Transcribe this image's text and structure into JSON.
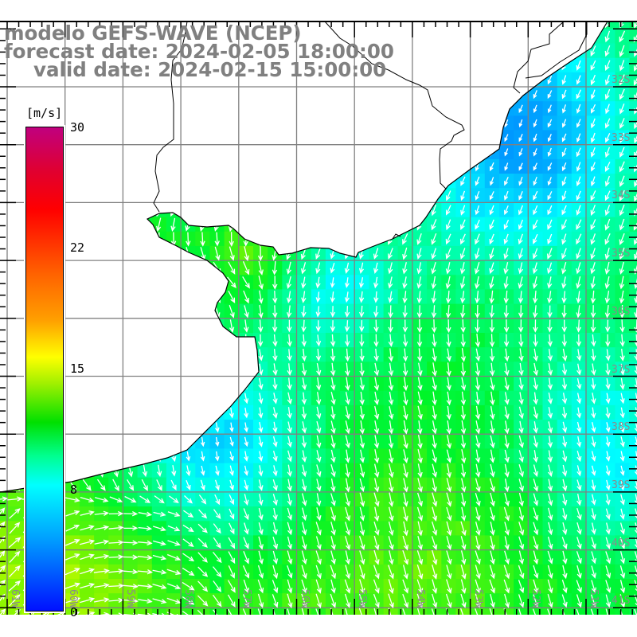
{
  "title": {
    "model": "modelo GEFS-WAVE (NCEP)",
    "forecast": "forecast date: 2024-02-05 18:00:00",
    "valid": "valid date: 2024-02-15 15:00:00"
  },
  "colorbar": {
    "unit": "[m/s]",
    "ticks": [
      {
        "value": 30,
        "label": "30"
      },
      {
        "value": 22,
        "label": "22"
      },
      {
        "value": 15,
        "label": "15"
      },
      {
        "value": 8,
        "label": "8"
      },
      {
        "value": 0,
        "label": "0"
      }
    ],
    "range": [
      0,
      30
    ],
    "colors": [
      "#c0007f",
      "#ff0000",
      "#ffa000",
      "#ffff00",
      "#00e000",
      "#00ffff",
      "#0010ff"
    ]
  },
  "map": {
    "lat_labels": [
      "32S",
      "33S",
      "34S",
      "35S",
      "36S",
      "37S",
      "38S",
      "39S",
      "40S",
      "41S"
    ],
    "lon_labels": [
      "61W",
      "60W",
      "59W",
      "58W",
      "57W",
      "56W",
      "55W",
      "54W",
      "53W",
      "52W",
      "51W"
    ],
    "lat_range": [
      "31.2S",
      "41.1S"
    ],
    "lon_range": [
      "61.1W",
      "50.2W"
    ],
    "variable": "wind speed and direction",
    "colors": {
      "land": "#ffffff",
      "coast": "#000000",
      "grid": "#808080",
      "arrow": "#ffffff"
    }
  }
}
